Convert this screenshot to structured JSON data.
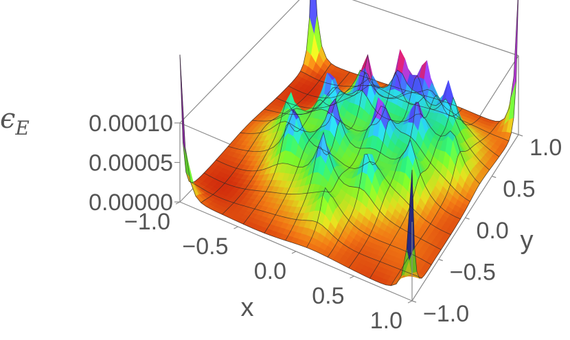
{
  "chart_data": {
    "type": "surface3d",
    "title": "",
    "xlabel": "x",
    "ylabel": "y",
    "zlabel": "ϵ",
    "zlabel_subscript": "E",
    "xlim": [
      -1.0,
      1.0
    ],
    "ylim": [
      -1.0,
      1.0
    ],
    "zlim": [
      0.0,
      0.0001
    ],
    "x_ticks": [
      "−1.0",
      "−0.5",
      "0.0",
      "0.5",
      "1.0"
    ],
    "y_ticks": [
      "−1.0",
      "−0.5",
      "0.0",
      "0.5",
      "1.0"
    ],
    "z_ticks": [
      "0.00000",
      "0.00005",
      "0.00010"
    ],
    "x_tick_values": [
      -1.0,
      -0.5,
      0.0,
      0.5,
      1.0
    ],
    "y_tick_values": [
      -1.0,
      -0.5,
      0.0,
      0.5,
      1.0
    ],
    "z_tick_values": [
      0.0,
      5e-05,
      0.0001
    ],
    "grid": false,
    "colormap": "rainbow",
    "peaks": [
      {
        "x": -1.0,
        "y": -1.0,
        "z": 0.00018
      },
      {
        "x": 1.0,
        "y": 1.0,
        "z": 0.00018
      },
      {
        "x": -1.0,
        "y": 1.0,
        "z": 0.00016
      },
      {
        "x": 1.0,
        "y": -1.0,
        "z": 0.00016
      },
      {
        "x": -0.35,
        "y": 0.2,
        "z": 9e-05
      },
      {
        "x": -0.1,
        "y": 0.35,
        "z": 0.0001
      },
      {
        "x": 0.15,
        "y": 0.5,
        "z": 0.0001
      },
      {
        "x": 0.35,
        "y": 0.55,
        "z": 9e-05
      },
      {
        "x": -0.4,
        "y": -0.3,
        "z": 9e-05
      },
      {
        "x": -0.15,
        "y": -0.1,
        "z": 9e-05
      },
      {
        "x": 0.2,
        "y": 0.05,
        "z": 9e-05
      },
      {
        "x": 0.45,
        "y": 0.2,
        "z": 8e-05
      },
      {
        "x": 0.6,
        "y": 0.5,
        "z": 8e-05
      },
      {
        "x": -0.05,
        "y": -0.45,
        "z": 8e-05
      },
      {
        "x": 0.3,
        "y": -0.35,
        "z": 8e-05
      },
      {
        "x": 0.55,
        "y": -0.1,
        "z": 7e-05
      },
      {
        "x": 0.75,
        "y": 0.25,
        "z": 6e-05
      },
      {
        "x": -0.6,
        "y": 0.0,
        "z": 6e-05
      },
      {
        "x": -0.3,
        "y": 0.65,
        "z": 5e-05
      },
      {
        "x": 0.1,
        "y": -0.7,
        "z": 5e-05
      }
    ]
  }
}
